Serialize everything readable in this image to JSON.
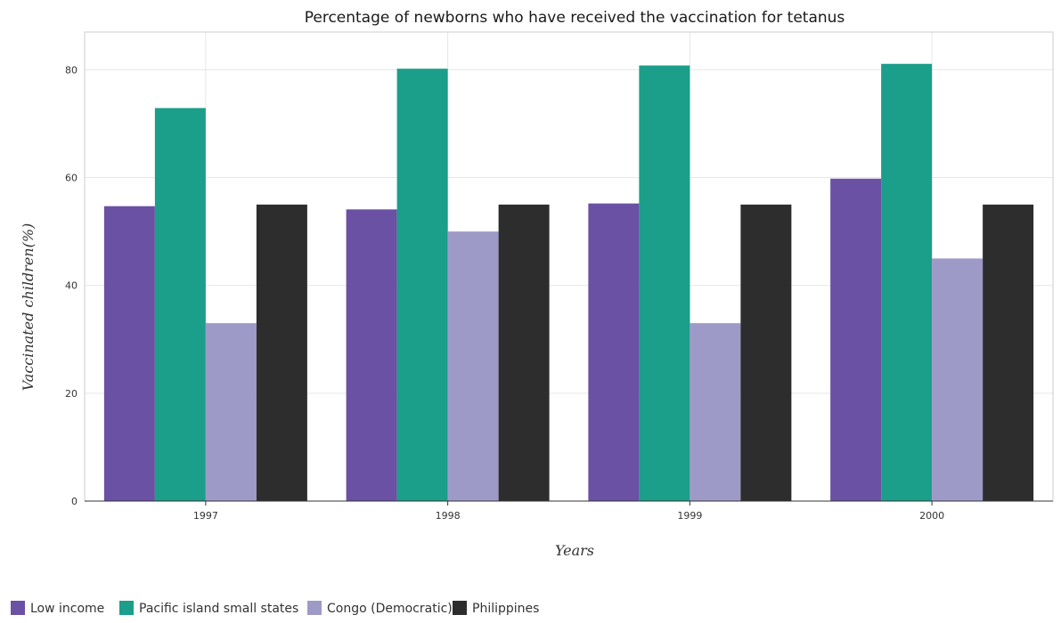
{
  "chart_data": {
    "type": "bar",
    "title": "Percentage of newborns who have received the vaccination for tetanus",
    "xlabel": "Years",
    "ylabel": "Vaccinated children(%)",
    "categories": [
      "1997",
      "1998",
      "1999",
      "2000"
    ],
    "ylim": [
      0,
      87
    ],
    "yticks": [
      0,
      20,
      40,
      60,
      80
    ],
    "grid": true,
    "legend_position": "bottom-left",
    "series": [
      {
        "name": "Low income",
        "color": "#6a51a3",
        "values": [
          54.7,
          54.1,
          55.2,
          59.8
        ]
      },
      {
        "name": "Pacific island small states",
        "color": "#1b9e8a",
        "values": [
          72.9,
          80.2,
          80.8,
          81.1
        ]
      },
      {
        "name": "Congo (Democratic)",
        "color": "#9e9ac8",
        "values": [
          33,
          50,
          33,
          45
        ]
      },
      {
        "name": "Philippines",
        "color": "#2d2d2d",
        "values": [
          55,
          55,
          55,
          55
        ]
      }
    ]
  }
}
